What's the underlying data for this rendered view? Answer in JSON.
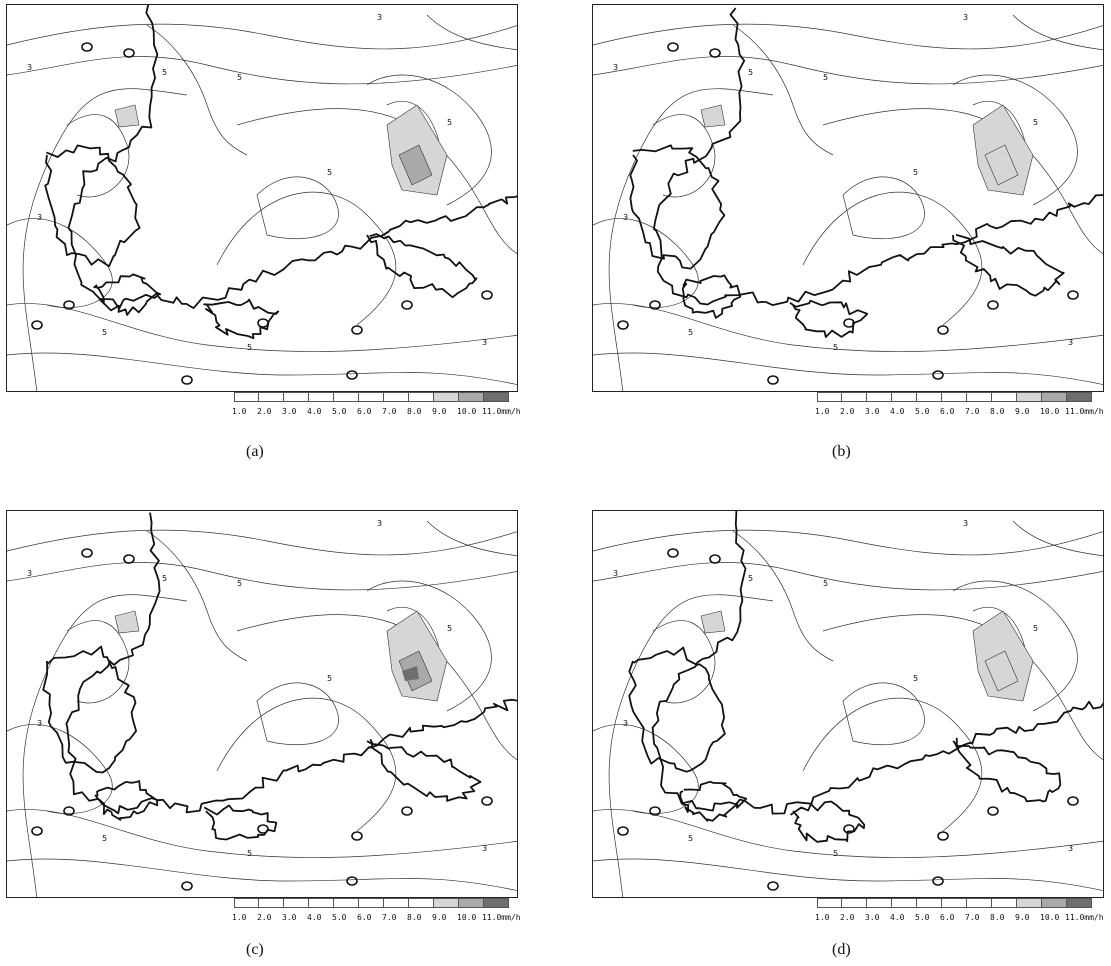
{
  "panels": [
    {
      "id": "a",
      "caption": "(a)"
    },
    {
      "id": "b",
      "caption": "(b)"
    },
    {
      "id": "c",
      "caption": "(c)"
    },
    {
      "id": "d",
      "caption": "(d)"
    }
  ],
  "legend": {
    "labels": [
      "1.0",
      "2.0",
      "3.0",
      "4.0",
      "5.0",
      "6.0",
      "7.0",
      "8.0",
      "9.0",
      "10.0",
      "11.0mm/h"
    ],
    "shading": [
      "none",
      "none",
      "none",
      "none",
      "none",
      "none",
      "none",
      "none",
      "light",
      "medium",
      "dark"
    ]
  },
  "contour_labels": [
    "3",
    "5"
  ],
  "colors": {
    "coast": "#111111",
    "contour": "#333333",
    "shade_light": "#d6d6d6",
    "shade_medium": "#a9a9a9",
    "shade_dark": "#6e6e6e"
  }
}
